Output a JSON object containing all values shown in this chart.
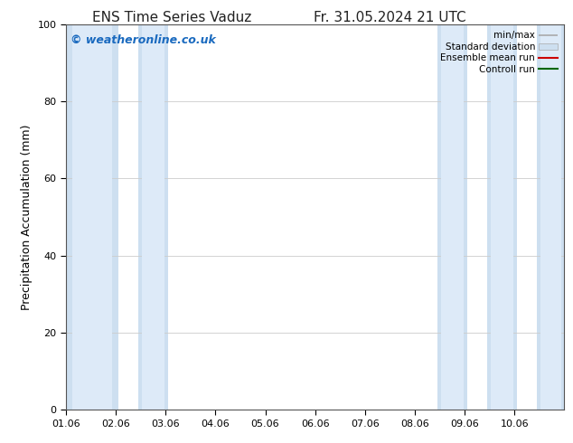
{
  "title": "ENS Time Series Vaduz",
  "title_right": "Fr. 31.05.2024 21 UTC",
  "ylabel": "Precipitation Accumulation (mm)",
  "watermark": "© weatheronline.co.uk",
  "watermark_color": "#1a6abf",
  "ylim": [
    0,
    100
  ],
  "yticks": [
    0,
    20,
    40,
    60,
    80,
    100
  ],
  "xlim_start": 0,
  "xlim_end": 10,
  "xtick_labels": [
    "01.06",
    "02.06",
    "03.06",
    "04.06",
    "05.06",
    "06.06",
    "07.06",
    "08.06",
    "09.06",
    "10.06"
  ],
  "bg_color": "#ffffff",
  "plot_bg_color": "#ffffff",
  "shaded_bands": [
    {
      "x_start": 0.0,
      "x_end": 1.05
    },
    {
      "x_start": 1.45,
      "x_end": 2.05
    },
    {
      "x_start": 7.45,
      "x_end": 8.05
    },
    {
      "x_start": 8.45,
      "x_end": 9.05
    },
    {
      "x_start": 9.45,
      "x_end": 10.0
    }
  ],
  "band_color_outer": "#cddff0",
  "band_color_inner": "#ddeaf8",
  "legend_labels": [
    "min/max",
    "Standard deviation",
    "Ensemble mean run",
    "Controll run"
  ],
  "legend_line_colors": [
    "#aaaaaa",
    "#cddff0",
    "#cc0000",
    "#006600"
  ],
  "grid_color": "#cccccc",
  "title_fontsize": 11,
  "axis_fontsize": 8,
  "label_fontsize": 9,
  "watermark_fontsize": 9
}
